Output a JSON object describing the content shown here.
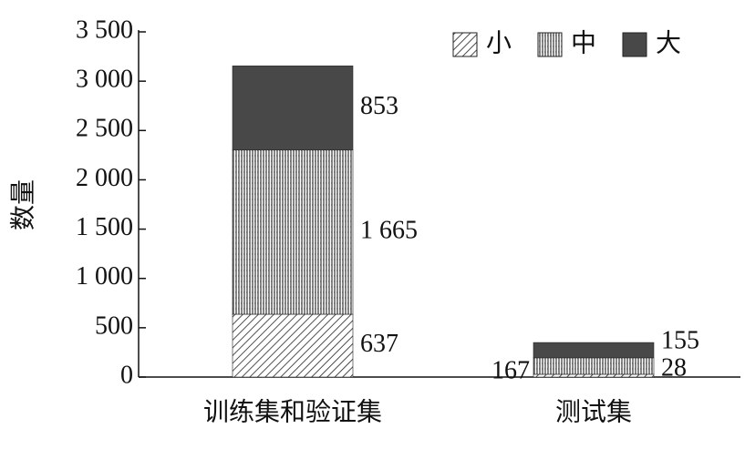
{
  "chart_data": {
    "type": "stacked_bar",
    "ylabel": "数量",
    "categories": [
      "训练集和验证集",
      "测试集"
    ],
    "series": [
      {
        "name": "小",
        "color": "#222222",
        "values": [
          637,
          28
        ],
        "value_labels": [
          "637",
          "28"
        ]
      },
      {
        "name": "中",
        "color": "#222222",
        "values": [
          1665,
          167
        ],
        "value_labels": [
          "1 665",
          "167"
        ]
      },
      {
        "name": "大",
        "color": "#484848",
        "values": [
          853,
          155
        ],
        "value_labels": [
          "853",
          "155"
        ]
      }
    ],
    "ylim": [
      0,
      3500
    ],
    "yticks": [
      0,
      500,
      {
        "value": 1000,
        "label": "1 000"
      },
      {
        "value": 1500,
        "label": "1 500"
      },
      {
        "value": 2000,
        "label": "2 000"
      },
      {
        "value": 2500,
        "label": "2 500"
      },
      {
        "value": 3000,
        "label": "3 000"
      },
      {
        "value": 3500,
        "label": "3 500"
      }
    ],
    "legend": "upper right"
  }
}
